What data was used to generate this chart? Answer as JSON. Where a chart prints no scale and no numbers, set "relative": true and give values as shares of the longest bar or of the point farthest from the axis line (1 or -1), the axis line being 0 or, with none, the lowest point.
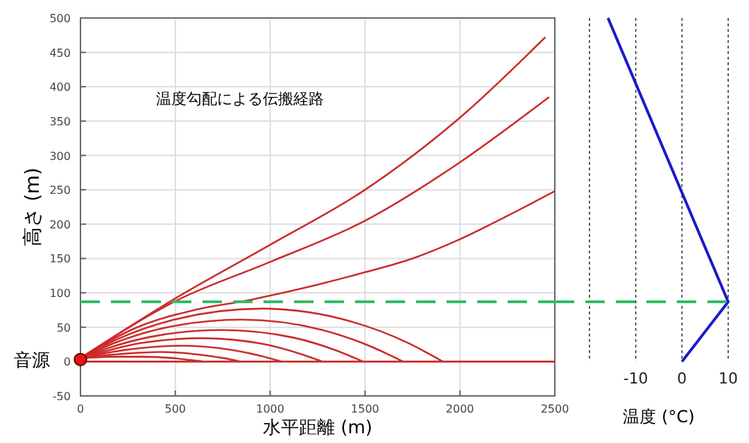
{
  "chart_data": [
    {
      "type": "line",
      "title": "温度勾配による伝搬経路",
      "xlabel": "水平距離 (m)",
      "ylabel": "高さ (m)",
      "xlim": [
        0,
        2500
      ],
      "ylim": [
        -50,
        500
      ],
      "xticks": [
        0,
        500,
        1000,
        1500,
        2000,
        2500
      ],
      "yticks": [
        -50,
        0,
        50,
        100,
        150,
        200,
        250,
        300,
        350,
        400,
        450,
        500
      ],
      "grid": true,
      "annotations": [
        {
          "text": "音源",
          "x": 0,
          "y": 3
        }
      ],
      "ref_lines": [
        {
          "axis": "y",
          "value": 87,
          "color": "#33bb66",
          "line_style": "dashed"
        }
      ],
      "series": [
        {
          "color": "#cc2b2b",
          "x": [
            0,
            500,
            1000,
            1500,
            2000,
            2450
          ],
          "values": [
            5,
            92,
            170,
            250,
            355,
            472
          ]
        },
        {
          "color": "#cc2b2b",
          "x": [
            0,
            500,
            1000,
            1500,
            2000,
            2470
          ],
          "values": [
            5,
            88,
            145,
            205,
            290,
            385
          ]
        },
        {
          "color": "#cc2b2b",
          "x": [
            0,
            300,
            600,
            900,
            1000,
            1250,
            1500,
            1750,
            2000,
            2250,
            2500
          ],
          "values": [
            5,
            50,
            75,
            90,
            96,
            112,
            130,
            150,
            178,
            212,
            248
          ]
        },
        {
          "color": "#cc2b2b",
          "x": [
            0,
            190,
            480,
            955,
            1430,
            1720,
            1910
          ],
          "values": [
            5,
            32,
            60,
            77,
            58,
            28,
            0
          ]
        },
        {
          "color": "#cc2b2b",
          "x": [
            0,
            170,
            425,
            850,
            1275,
            1530,
            1700
          ],
          "values": [
            5,
            26,
            48,
            61,
            46,
            22,
            0
          ]
        },
        {
          "color": "#cc2b2b",
          "x": [
            0,
            150,
            370,
            745,
            1120,
            1340,
            1490
          ],
          "values": [
            5,
            20,
            36,
            46,
            35,
            17,
            0
          ]
        },
        {
          "color": "#cc2b2b",
          "x": [
            0,
            130,
            320,
            640,
            955,
            1150,
            1275
          ],
          "values": [
            5,
            15,
            27,
            34,
            26,
            12,
            0
          ]
        },
        {
          "color": "#cc2b2b",
          "x": [
            0,
            105,
            265,
            530,
            795,
            955,
            1060
          ],
          "values": [
            5,
            11,
            18,
            23,
            17,
            8,
            0
          ]
        },
        {
          "color": "#cc2b2b",
          "x": [
            0,
            85,
            210,
            420,
            630,
            755,
            840
          ],
          "values": [
            5,
            8,
            11,
            14,
            10,
            5,
            0
          ]
        },
        {
          "color": "#cc2b2b",
          "x": [
            0,
            65,
            160,
            325,
            490,
            585,
            650
          ],
          "values": [
            5,
            6,
            7,
            7,
            5,
            2,
            0
          ]
        },
        {
          "color": "#cc2b2b",
          "x": [
            0,
            2500
          ],
          "values": [
            0,
            0
          ]
        },
        {
          "type": "scatter",
          "color": "#ee1111",
          "marker": "circle",
          "x": [
            0
          ],
          "values": [
            3
          ]
        }
      ]
    },
    {
      "type": "line",
      "xlabel": "温度 (°C)",
      "xlim": [
        -20,
        10
      ],
      "relative": true,
      "xticks": [
        {
          "value": -20,
          "label": null
        },
        -10,
        0,
        10
      ],
      "tick_labels": "x",
      "grid": "x",
      "ref_lines": [
        {
          "axis": "y",
          "value": 0.174,
          "color": "#33bb66",
          "line_style": "dashed"
        }
      ],
      "series": [
        {
          "color": "#1a1acc",
          "x": [
            0,
            10,
            -16
          ],
          "values": [
            0,
            0.174,
            1
          ]
        }
      ]
    }
  ]
}
